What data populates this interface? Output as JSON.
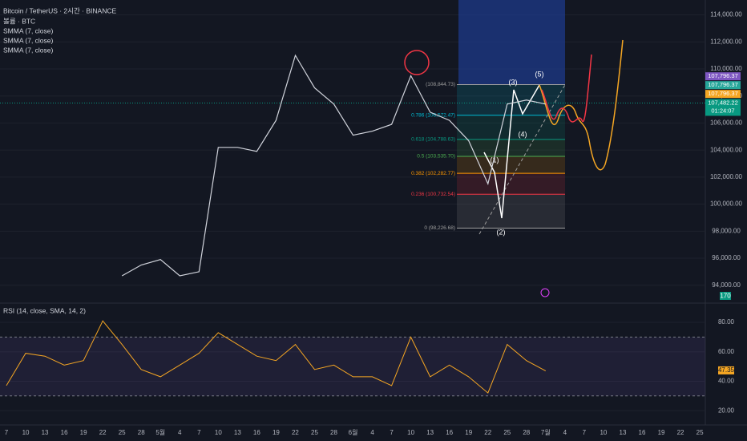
{
  "chart_data": [
    {
      "type": "line",
      "title": "Bitcoin / TetherUS · 2시간 · BINANCE",
      "indicators": [
        "볼륨 · BTC",
        "SMMA (7, close)",
        "SMMA (7, close)",
        "SMMA (7, close)"
      ],
      "categories": [
        "7",
        "10",
        "13",
        "16",
        "19",
        "22",
        "25",
        "28",
        "5월",
        "4",
        "7",
        "10",
        "13",
        "16",
        "19",
        "22",
        "25",
        "28",
        "6월",
        "4",
        "7",
        "10",
        "13",
        "16",
        "19",
        "22",
        "25",
        "28",
        "7월",
        "4",
        "7",
        "10",
        "13",
        "16",
        "19",
        "22",
        "25"
      ],
      "values": [
        null,
        null,
        null,
        null,
        null,
        null,
        94700,
        95500,
        95900,
        94700,
        95000,
        104200,
        104200,
        103900,
        106200,
        111000,
        108600,
        107400,
        105100,
        105400,
        105900,
        109500,
        106800,
        106200,
        104700,
        101500,
        107400,
        107700,
        107400,
        null,
        null,
        null,
        null,
        null,
        null,
        null,
        null
      ],
      "color": "#d1d4dc",
      "ylim": [
        92800,
        115100
      ],
      "yticks": [
        {
          "value": 94000,
          "label": "94,000.00"
        },
        {
          "value": 96000,
          "label": "96,000.00"
        },
        {
          "value": 98000,
          "label": "98,000.00"
        },
        {
          "value": 100000,
          "label": "100,000.00"
        },
        {
          "value": 102000,
          "label": "102,000.00"
        },
        {
          "value": 104000,
          "label": "104,000.00"
        },
        {
          "value": 106000,
          "label": "106,000.00"
        },
        {
          "value": 108000,
          "label": "108,000.00"
        },
        {
          "value": 110000,
          "label": "110,000.00"
        },
        {
          "value": 112000,
          "label": "112,000.00"
        },
        {
          "value": 114000,
          "label": "114,000.00"
        }
      ],
      "grid": true,
      "fib_levels": [
        {
          "value": 108844.73,
          "label": "(108,844.73)",
          "color": "#9e9e9e"
        },
        {
          "value": 106572.47,
          "label": "0.786 (106,572.47)",
          "color": "#00bcd4"
        },
        {
          "value": 104788.63,
          "label": "0.618 (104,788.63)",
          "color": "#089981"
        },
        {
          "value": 103535.7,
          "label": "0.5 (103,535.70)",
          "color": "#4caf50"
        },
        {
          "value": 102282.77,
          "label": "0.382 (102,282.77)",
          "color": "#ff9800"
        },
        {
          "value": 100732.54,
          "label": "0.236 (100,732.54)",
          "color": "#f23645"
        },
        {
          "value": 98226.68,
          "label": "0 (98,226.68)",
          "color": "#9e9e9e"
        }
      ],
      "wave_labels": [
        "(1)",
        "(2)",
        "(3)",
        "(4)",
        "(5)"
      ],
      "price_labels": [
        {
          "value": 107796.37,
          "label": "107,796.37",
          "color": "#7e57c2"
        },
        {
          "value": 107796.37,
          "label": "107,796.37",
          "color": "#26a69a"
        },
        {
          "value": 107796.37,
          "label": "107,796.37",
          "color": "#f5a623"
        },
        {
          "value": 107482.22,
          "label": "107,482.22",
          "color": "#089981",
          "countdown": "01:24:07"
        }
      ],
      "volume_last": 170
    },
    {
      "type": "line",
      "title": "RSI (14, close, SMA, 14, 2)",
      "values": [
        37,
        59,
        57,
        51,
        54,
        81,
        65,
        48,
        43,
        51,
        59,
        73,
        65,
        57,
        54,
        65,
        48,
        51,
        43,
        43,
        37,
        70,
        43,
        51,
        43,
        32,
        65,
        54,
        47,
        null,
        null,
        null,
        null,
        null,
        null,
        null,
        null
      ],
      "color": "#f5a623",
      "ylim": [
        13,
        92
      ],
      "yticks": [
        {
          "value": 20,
          "label": "20.00"
        },
        {
          "value": 40,
          "label": "40.00"
        },
        {
          "value": 60,
          "label": "60.00"
        },
        {
          "value": 80,
          "label": "80.00"
        }
      ],
      "band": [
        30,
        70
      ],
      "last_label": {
        "value": 47.35,
        "label": "47.35"
      }
    }
  ]
}
